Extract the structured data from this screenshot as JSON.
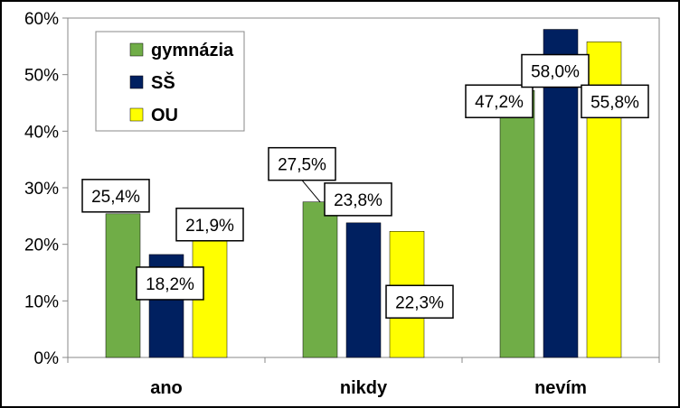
{
  "chart_data": {
    "type": "bar",
    "categories": [
      "ano",
      "nikdy",
      "nevím"
    ],
    "series": [
      {
        "name": "gymnázia",
        "color": "#70AD47",
        "values": [
          25.4,
          27.5,
          47.2
        ],
        "labels": [
          "25,4%",
          "27,5%",
          "47,2%"
        ]
      },
      {
        "name": "SŠ",
        "color": "#002060",
        "values": [
          18.2,
          23.8,
          58.0
        ],
        "labels": [
          "18,2%",
          "23,8%",
          "58,0%"
        ]
      },
      {
        "name": "OU",
        "color": "#FFFF00",
        "values": [
          21.9,
          22.3,
          55.8
        ],
        "labels": [
          "21,9%",
          "22,3%",
          "55,8%"
        ]
      }
    ],
    "y_ticks": [
      0,
      10,
      20,
      30,
      40,
      50,
      60
    ],
    "y_tick_labels": [
      "0%",
      "10%",
      "20%",
      "30%",
      "40%",
      "50%",
      "60%"
    ],
    "ylim": [
      0,
      60
    ],
    "grid": false,
    "legend_position": "top-left",
    "title": "",
    "xlabel": "",
    "ylabel": ""
  }
}
